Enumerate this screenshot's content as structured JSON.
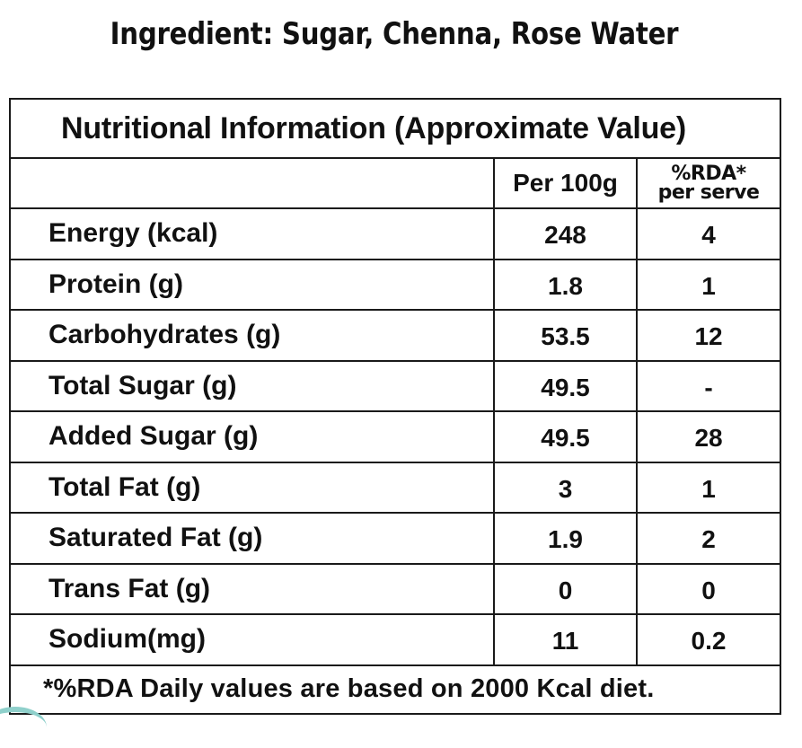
{
  "ingredient_line": "Ingredient: Sugar, Chenna, Rose Water",
  "table": {
    "title": "Nutritional Information (Approximate Value)",
    "header": {
      "name": "",
      "per_100g": "Per 100g",
      "rda_line1": "%RDA*",
      "rda_line2": "per serve"
    },
    "rows": [
      {
        "name": "Energy (kcal)",
        "per_100g": "248",
        "rda": "4"
      },
      {
        "name": "Protein (g)",
        "per_100g": "1.8",
        "rda": "1"
      },
      {
        "name": "Carbohydrates (g)",
        "per_100g": "53.5",
        "rda": "12"
      },
      {
        "name": "Total Sugar (g)",
        "per_100g": "49.5",
        "rda": "-"
      },
      {
        "name": "Added Sugar (g)",
        "per_100g": "49.5",
        "rda": "28"
      },
      {
        "name": "Total Fat (g)",
        "per_100g": "3",
        "rda": "1"
      },
      {
        "name": "Saturated Fat (g)",
        "per_100g": "1.9",
        "rda": "2"
      },
      {
        "name": "Trans Fat (g)",
        "per_100g": "0",
        "rda": "0"
      },
      {
        "name": "Sodium(mg)",
        "per_100g": "11",
        "rda": "0.2"
      }
    ],
    "footnote": "*%RDA Daily values are based on 2000 Kcal diet."
  },
  "colors": {
    "text": "#111111",
    "border": "#1a1a1a",
    "background": "#ffffff",
    "accent_corner": "#8fd0cb"
  }
}
